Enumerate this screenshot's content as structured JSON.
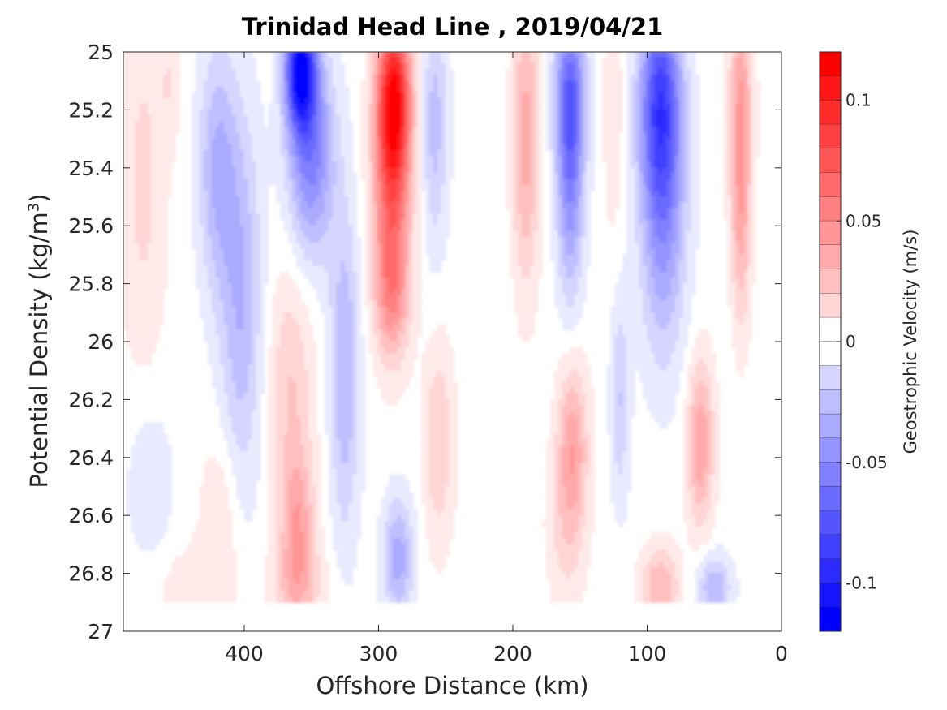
{
  "chart_data": {
    "type": "heatmap",
    "title": "Trinidad Head Line , 2019/04/21",
    "xlabel": "Offshore Distance (km)",
    "ylabel_main": "Potential Density (kg/m",
    "ylabel_sup": "3",
    "ylabel_end": ")",
    "colorbar_label": "Geostrophic Velocity (m/s)",
    "xlim": [
      490,
      0
    ],
    "ylim": [
      25,
      27
    ],
    "x_ticks": [
      400,
      300,
      200,
      100,
      0
    ],
    "x_tick_labels": [
      "400",
      "300",
      "200",
      "100",
      "0"
    ],
    "y_ticks": [
      25,
      25.2,
      25.4,
      25.6,
      25.8,
      26,
      26.2,
      26.4,
      26.6,
      26.8,
      27
    ],
    "y_tick_labels": [
      "25",
      "25.2",
      "25.4",
      "25.6",
      "25.8",
      "26",
      "26.2",
      "26.4",
      "26.6",
      "26.8",
      "27"
    ],
    "colorbar_ticks": [
      0.1,
      0.05,
      0,
      -0.05,
      -0.1
    ],
    "colorbar_tick_labels": [
      "0.1",
      "0.05",
      "0",
      "-0.05",
      "-0.1"
    ],
    "clim": [
      -0.12,
      0.12
    ],
    "contour_step": 0.01,
    "colormap": {
      "negative": "#0000ff",
      "zero": "#ffffff",
      "positive": "#ff0000"
    },
    "data_bottom_density": 26.9,
    "features": [
      {
        "x": 475,
        "y": 25.45,
        "sx": 12,
        "sy": 0.45,
        "v": 0.018
      },
      {
        "x": 455,
        "y": 25.1,
        "sx": 6,
        "sy": 0.15,
        "v": 0.012
      },
      {
        "x": 420,
        "y": 25.4,
        "sx": 10,
        "sy": 0.3,
        "v": -0.035
      },
      {
        "x": 402,
        "y": 25.85,
        "sx": 11,
        "sy": 0.45,
        "v": -0.035
      },
      {
        "x": 358,
        "y": 25.05,
        "sx": 8,
        "sy": 0.15,
        "v": -0.11
      },
      {
        "x": 350,
        "y": 25.35,
        "sx": 12,
        "sy": 0.25,
        "v": -0.06
      },
      {
        "x": 325,
        "y": 26.1,
        "sx": 8,
        "sy": 0.4,
        "v": -0.035
      },
      {
        "x": 288,
        "y": 25.15,
        "sx": 9,
        "sy": 0.2,
        "v": 0.095
      },
      {
        "x": 290,
        "y": 25.5,
        "sx": 10,
        "sy": 0.3,
        "v": 0.065
      },
      {
        "x": 290,
        "y": 25.85,
        "sx": 9,
        "sy": 0.15,
        "v": 0.03
      },
      {
        "x": 258,
        "y": 25.25,
        "sx": 7,
        "sy": 0.3,
        "v": -0.03
      },
      {
        "x": 190,
        "y": 25.3,
        "sx": 7,
        "sy": 0.35,
        "v": 0.04
      },
      {
        "x": 157,
        "y": 25.15,
        "sx": 8,
        "sy": 0.22,
        "v": -0.07
      },
      {
        "x": 157,
        "y": 25.55,
        "sx": 7,
        "sy": 0.25,
        "v": -0.04
      },
      {
        "x": 125,
        "y": 25.2,
        "sx": 5,
        "sy": 0.3,
        "v": 0.015
      },
      {
        "x": 90,
        "y": 25.15,
        "sx": 11,
        "sy": 0.25,
        "v": -0.07
      },
      {
        "x": 88,
        "y": 25.55,
        "sx": 12,
        "sy": 0.35,
        "v": -0.05
      },
      {
        "x": 30,
        "y": 25.2,
        "sx": 6,
        "sy": 0.3,
        "v": 0.045
      },
      {
        "x": 30,
        "y": 25.65,
        "sx": 5,
        "sy": 0.25,
        "v": 0.025
      },
      {
        "x": 365,
        "y": 26.15,
        "sx": 12,
        "sy": 0.3,
        "v": 0.025
      },
      {
        "x": 360,
        "y": 26.65,
        "sx": 9,
        "sy": 0.18,
        "v": 0.04
      },
      {
        "x": 360,
        "y": 26.85,
        "sx": 15,
        "sy": 0.1,
        "v": 0.02
      },
      {
        "x": 418,
        "y": 26.6,
        "sx": 10,
        "sy": 0.2,
        "v": 0.015
      },
      {
        "x": 440,
        "y": 26.85,
        "sx": 25,
        "sy": 0.12,
        "v": 0.01
      },
      {
        "x": 255,
        "y": 26.35,
        "sx": 8,
        "sy": 0.25,
        "v": 0.025
      },
      {
        "x": 285,
        "y": 26.75,
        "sx": 8,
        "sy": 0.15,
        "v": -0.04
      },
      {
        "x": 155,
        "y": 26.35,
        "sx": 8,
        "sy": 0.2,
        "v": 0.04
      },
      {
        "x": 160,
        "y": 26.65,
        "sx": 10,
        "sy": 0.2,
        "v": 0.018
      },
      {
        "x": 120,
        "y": 26.2,
        "sx": 5,
        "sy": 0.25,
        "v": -0.025
      },
      {
        "x": 60,
        "y": 26.35,
        "sx": 7,
        "sy": 0.2,
        "v": 0.045
      },
      {
        "x": 90,
        "y": 26.85,
        "sx": 10,
        "sy": 0.1,
        "v": 0.035
      },
      {
        "x": 50,
        "y": 26.85,
        "sx": 9,
        "sy": 0.08,
        "v": -0.035
      },
      {
        "x": 470,
        "y": 26.5,
        "sx": 12,
        "sy": 0.2,
        "v": -0.015
      }
    ]
  }
}
